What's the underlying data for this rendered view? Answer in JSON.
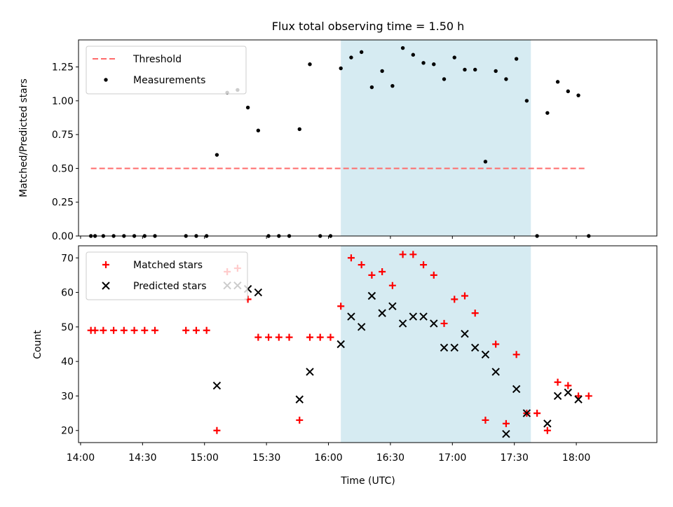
{
  "title": "Flux total observing time = 1.50 h",
  "colors": {
    "threshold": "#ff6b6b",
    "measurement": "#000000",
    "matched": "#ff0000",
    "predicted": "#000000",
    "span": "#add8e6"
  },
  "chart_data": [
    {
      "type": "scatter",
      "ylabel": "Matched/Predicted stars",
      "ylim": [
        0,
        1.45
      ],
      "yticks": [
        0.0,
        0.25,
        0.5,
        0.75,
        1.0,
        1.25
      ],
      "ytick_labels": [
        "0.00",
        "0.25",
        "0.50",
        "0.75",
        "1.00",
        "1.25"
      ],
      "xlim": [
        "13:59",
        "18:39"
      ],
      "highlight_span": [
        "16:06",
        "17:38"
      ],
      "legend": {
        "placement": "top-left",
        "entries": [
          "Threshold",
          "Measurements"
        ]
      },
      "threshold": {
        "name": "Threshold",
        "value": 0.5,
        "x_range": [
          "14:05",
          "18:05"
        ]
      },
      "series": [
        {
          "name": "Measurements",
          "points": [
            [
              "14:05",
              0
            ],
            [
              "14:07",
              0
            ],
            [
              "14:11",
              0
            ],
            [
              "14:16",
              0
            ],
            [
              "14:21",
              0
            ],
            [
              "14:26",
              0
            ],
            [
              "14:31",
              0
            ],
            [
              "14:36",
              0
            ],
            [
              "14:51",
              0
            ],
            [
              "14:56",
              0
            ],
            [
              "15:01",
              0
            ],
            [
              "15:06",
              0.6
            ],
            [
              "15:11",
              1.06
            ],
            [
              "15:16",
              1.08
            ],
            [
              "15:21",
              0.95
            ],
            [
              "15:26",
              0.78
            ],
            [
              "15:31",
              0
            ],
            [
              "15:36",
              0
            ],
            [
              "15:41",
              0
            ],
            [
              "15:46",
              0.79
            ],
            [
              "15:51",
              1.27
            ],
            [
              "15:56",
              0
            ],
            [
              "16:01",
              0
            ],
            [
              "16:06",
              1.24
            ],
            [
              "16:11",
              1.32
            ],
            [
              "16:16",
              1.36
            ],
            [
              "16:21",
              1.1
            ],
            [
              "16:26",
              1.22
            ],
            [
              "16:31",
              1.11
            ],
            [
              "16:36",
              1.39
            ],
            [
              "16:41",
              1.34
            ],
            [
              "16:46",
              1.28
            ],
            [
              "16:51",
              1.27
            ],
            [
              "16:56",
              1.16
            ],
            [
              "17:01",
              1.32
            ],
            [
              "17:06",
              1.23
            ],
            [
              "17:11",
              1.23
            ],
            [
              "17:16",
              0.55
            ],
            [
              "17:21",
              1.22
            ],
            [
              "17:26",
              1.16
            ],
            [
              "17:31",
              1.31
            ],
            [
              "17:36",
              1.0
            ],
            [
              "17:41",
              0
            ],
            [
              "17:46",
              0.91
            ],
            [
              "17:51",
              1.14
            ],
            [
              "17:56",
              1.07
            ],
            [
              "18:01",
              1.04
            ],
            [
              "18:06",
              0
            ]
          ]
        }
      ]
    },
    {
      "type": "scatter",
      "ylabel": "Count",
      "xlabel": "Time (UTC)",
      "ylim": [
        16.5,
        73.5
      ],
      "yticks": [
        20,
        30,
        40,
        50,
        60,
        70
      ],
      "ytick_labels": [
        "20",
        "30",
        "40",
        "50",
        "60",
        "70"
      ],
      "xlim": [
        "13:59",
        "18:39"
      ],
      "xticks": [
        "14:00",
        "14:30",
        "15:00",
        "15:30",
        "16:00",
        "16:30",
        "17:00",
        "17:30",
        "18:00"
      ],
      "xtick_labels": [
        "14:00",
        "14:30",
        "15:00",
        "15:30",
        "16:00",
        "16:30",
        "17:00",
        "17:30",
        "18:00"
      ],
      "highlight_span": [
        "16:06",
        "17:38"
      ],
      "legend": {
        "placement": "top-left",
        "entries": [
          "Matched stars",
          "Predicted stars"
        ]
      },
      "series": [
        {
          "name": "Matched stars",
          "marker": "plus",
          "points": [
            [
              "14:05",
              49
            ],
            [
              "14:07",
              49
            ],
            [
              "14:11",
              49
            ],
            [
              "14:16",
              49
            ],
            [
              "14:21",
              49
            ],
            [
              "14:26",
              49
            ],
            [
              "14:31",
              49
            ],
            [
              "14:36",
              49
            ],
            [
              "14:51",
              49
            ],
            [
              "14:56",
              49
            ],
            [
              "15:01",
              49
            ],
            [
              "15:06",
              20
            ],
            [
              "15:11",
              66
            ],
            [
              "15:16",
              67
            ],
            [
              "15:21",
              58
            ],
            [
              "15:26",
              47
            ],
            [
              "15:31",
              47
            ],
            [
              "15:36",
              47
            ],
            [
              "15:41",
              47
            ],
            [
              "15:46",
              23
            ],
            [
              "15:51",
              47
            ],
            [
              "15:56",
              47
            ],
            [
              "16:01",
              47
            ],
            [
              "16:06",
              56
            ],
            [
              "16:11",
              70
            ],
            [
              "16:16",
              68
            ],
            [
              "16:21",
              65
            ],
            [
              "16:26",
              66
            ],
            [
              "16:31",
              62
            ],
            [
              "16:36",
              71
            ],
            [
              "16:41",
              71
            ],
            [
              "16:46",
              68
            ],
            [
              "16:51",
              65
            ],
            [
              "16:56",
              51
            ],
            [
              "17:01",
              58
            ],
            [
              "17:06",
              59
            ],
            [
              "17:11",
              54
            ],
            [
              "17:16",
              23
            ],
            [
              "17:21",
              45
            ],
            [
              "17:26",
              22
            ],
            [
              "17:31",
              42
            ],
            [
              "17:36",
              25
            ],
            [
              "17:41",
              25
            ],
            [
              "17:46",
              20
            ],
            [
              "17:51",
              34
            ],
            [
              "17:56",
              33
            ],
            [
              "18:01",
              30
            ],
            [
              "18:06",
              30
            ]
          ]
        },
        {
          "name": "Predicted stars",
          "marker": "x",
          "points": [
            [
              "15:06",
              33
            ],
            [
              "15:11",
              62
            ],
            [
              "15:16",
              62
            ],
            [
              "15:21",
              61
            ],
            [
              "15:26",
              60
            ],
            [
              "15:46",
              29
            ],
            [
              "15:51",
              37
            ],
            [
              "16:06",
              45
            ],
            [
              "16:11",
              53
            ],
            [
              "16:16",
              50
            ],
            [
              "16:21",
              59
            ],
            [
              "16:26",
              54
            ],
            [
              "16:31",
              56
            ],
            [
              "16:36",
              51
            ],
            [
              "16:41",
              53
            ],
            [
              "16:46",
              53
            ],
            [
              "16:51",
              51
            ],
            [
              "16:56",
              44
            ],
            [
              "17:01",
              44
            ],
            [
              "17:06",
              48
            ],
            [
              "17:11",
              44
            ],
            [
              "17:16",
              42
            ],
            [
              "17:21",
              37
            ],
            [
              "17:26",
              19
            ],
            [
              "17:31",
              32
            ],
            [
              "17:36",
              25
            ],
            [
              "17:46",
              22
            ],
            [
              "17:51",
              30
            ],
            [
              "17:56",
              31
            ],
            [
              "18:01",
              29
            ]
          ]
        }
      ]
    }
  ]
}
